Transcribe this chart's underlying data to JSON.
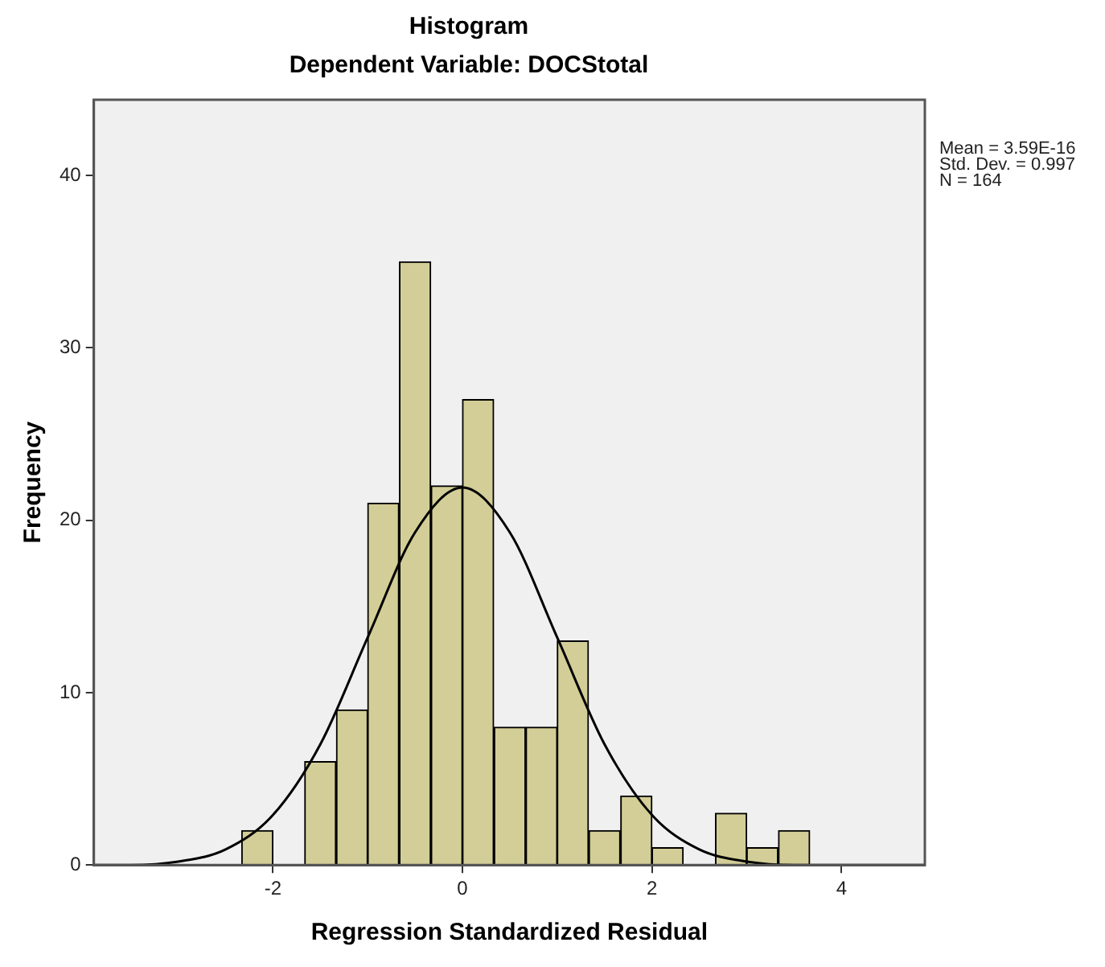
{
  "chart_data": {
    "type": "histogram",
    "title": "Histogram",
    "subtitle": "Dependent Variable: DOCStotal",
    "xlabel": "Regression Standardized Residual",
    "ylabel": "Frequency",
    "annotations": [
      "Mean = 3.59E-16",
      "Std. Dev. = 0.997",
      "N = 164"
    ],
    "series": [
      {
        "color": "#d3ce97",
        "bins": [
          -2.33,
          -2,
          -1.67,
          -1.33,
          -1,
          -0.67,
          -0.33,
          0,
          0.33,
          0.67,
          1,
          1.33,
          1.67,
          2,
          2.33,
          2.67,
          3,
          3.33,
          3.67
        ],
        "values": [
          2,
          0,
          6,
          9,
          21,
          35,
          22,
          27,
          8,
          8,
          13,
          2,
          4,
          1,
          0,
          3,
          1,
          2
        ]
      },
      {
        "type": "line",
        "color": "#000000",
        "x": [
          -3.89,
          -3.5,
          -3,
          -2.5,
          -2,
          -1.5,
          -1,
          -0.5,
          0,
          0.5,
          1,
          1.5,
          2,
          2.5,
          3,
          3.5,
          4,
          4.5,
          4.88
        ],
        "values": [
          0,
          0,
          0.2,
          0.9,
          2.9,
          7,
          13.2,
          19.3,
          21.9,
          19.3,
          13.2,
          7,
          2.9,
          0.9,
          0.2,
          0,
          0,
          0,
          0
        ]
      }
    ],
    "xlim": [
      -3.89,
      4.88
    ],
    "xticks": [
      -2,
      0,
      2,
      4
    ],
    "ylim": [
      0,
      44.4
    ],
    "yticks": [
      0,
      10,
      20,
      30,
      40
    ],
    "grid": false,
    "legend": false
  }
}
